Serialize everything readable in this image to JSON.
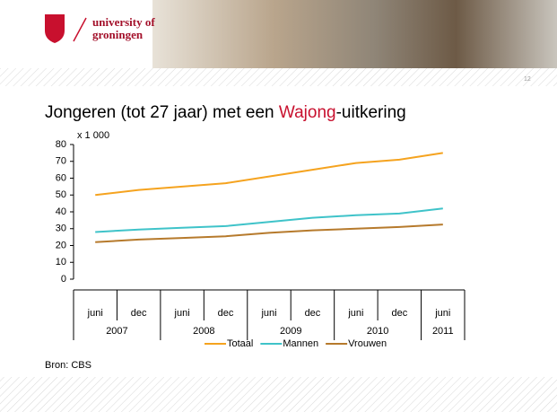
{
  "logo": {
    "line1": "university of",
    "line2": "groningen"
  },
  "slide_number": "12",
  "slide_title": {
    "before": "Jongeren (tot 27 jaar) met een ",
    "highlight": "Wajong",
    "after": "-uitkering"
  },
  "source": "Bron: CBS",
  "chart_data": {
    "type": "line",
    "unit_label": "x 1 000",
    "categories": [
      "juni",
      "dec",
      "juni",
      "dec",
      "juni",
      "dec",
      "juni",
      "dec",
      "juni"
    ],
    "years": [
      "2007",
      "2008",
      "2009",
      "2010",
      "2011"
    ],
    "series": [
      {
        "name": "Totaal",
        "color": "#f5a31f",
        "values": [
          50,
          53,
          55,
          57,
          61,
          65,
          69,
          71,
          75
        ]
      },
      {
        "name": "Mannen",
        "color": "#3fc3c9",
        "values": [
          28,
          29.5,
          30.5,
          31.5,
          34,
          36.5,
          38,
          39,
          42
        ]
      },
      {
        "name": "Vrouwen",
        "color": "#b67a2c",
        "values": [
          22,
          23.5,
          24.5,
          25.5,
          27.5,
          29,
          30,
          31,
          32.5
        ]
      }
    ],
    "ylim": [
      0,
      80
    ],
    "yticks": [
      0,
      10,
      20,
      30,
      40,
      50,
      60,
      70,
      80
    ],
    "grid": false,
    "legend": "bottom"
  }
}
